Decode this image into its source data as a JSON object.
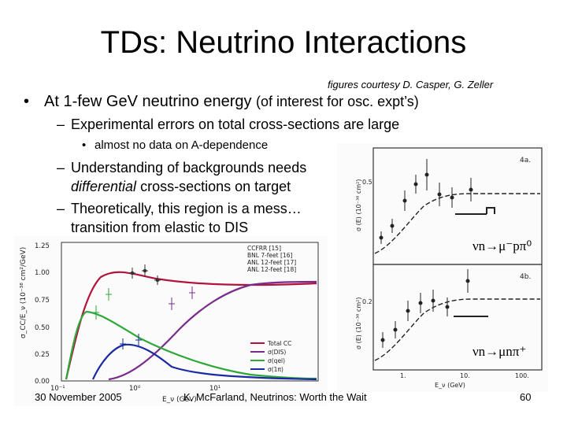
{
  "slide": {
    "title": "TDs: Neutrino Interactions",
    "credit": "figures courtesy D. Casper, G. Zeller",
    "bullet1_main": "At 1-few GeV neutrino energy",
    "bullet1_paren": "(of interest for osc. expt’s)",
    "sub1": "Experimental errors on total cross-sections are large",
    "subsub1": "almost no data on A-dependence",
    "sub2_line1": "Understanding of backgrounds needs",
    "sub2_line2_em": "differential",
    "sub2_line2_rest": "cross-sections on target",
    "sub3_line1": "Theoretically, this region is a mess…",
    "sub3_line2": "transition from elastic to DIS"
  },
  "footer": {
    "date": "30 November 2005",
    "center": "K. McFarland, Neutrinos: Worth the Wait",
    "page": "60"
  },
  "left_plot": {
    "ylabel": "σ_CC/E_ν (10⁻³⁸ cm²/GeV)",
    "xlabel": "E_ν (GeV)",
    "yticks": [
      "0.00",
      "0.25",
      "0.50",
      "0.75",
      "1.00",
      "1.25"
    ],
    "xticks": [
      "10⁻¹",
      "10⁰",
      "10¹"
    ],
    "legend_data": [
      "CCFRR [15]",
      "BNL 7-feet [16]",
      "ANL 12-feet [17]",
      "ANL 12-feet [18]"
    ],
    "legend_curves": [
      "Total CC",
      "σ(DIS)",
      "σ(qel)",
      "σ(1π)"
    ],
    "colors": {
      "total": "#b3123c",
      "dis": "#7a2c8c",
      "qel": "#2fa83a",
      "pi": "#1a2aa0"
    }
  },
  "right_plot": {
    "panel_a": "4a.",
    "panel_b": "4b.",
    "ylabel_top": "σ (E) (10⁻³⁸ cm²)",
    "ylabel_bottom": "σ (E) (10⁻³⁸ cm²)",
    "tick_top": "0.5",
    "tick_bottom": "0.2",
    "xticks": [
      "1.",
      "10.",
      "100."
    ],
    "xlabel": "E_ν (GeV)",
    "reaction_top": "νn→μ⁻pπ⁰",
    "reaction_bottom": "νn→μnπ⁺"
  }
}
